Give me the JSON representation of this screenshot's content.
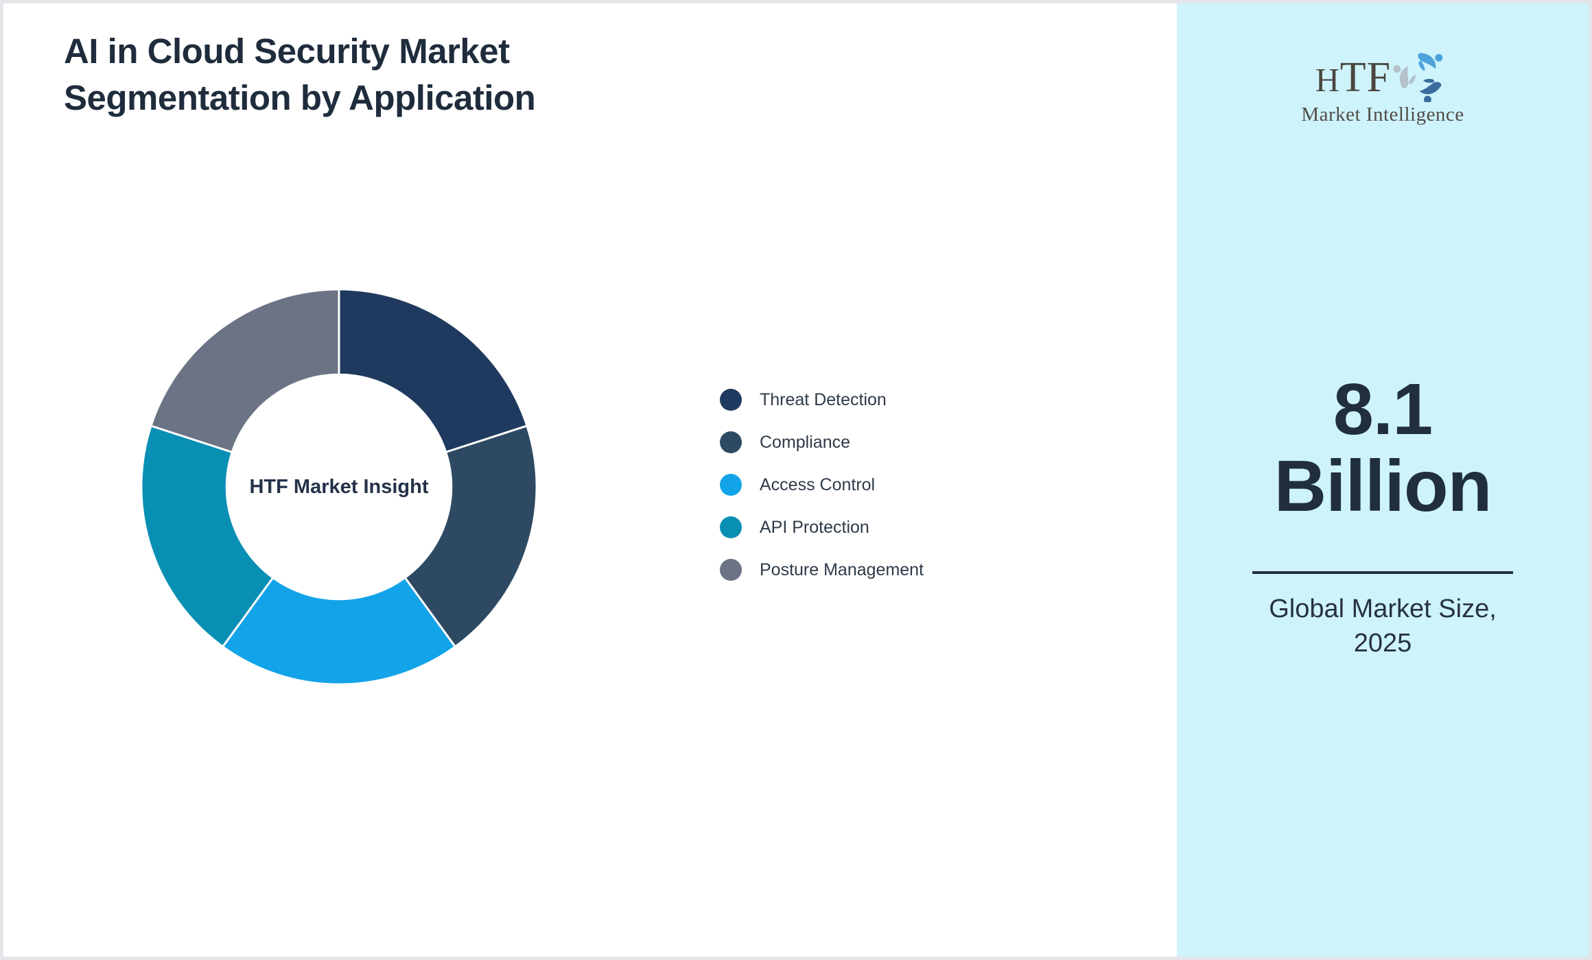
{
  "page": {
    "title_lines": [
      "AI in Cloud Security Market",
      "Segmentation by Application"
    ]
  },
  "sidebar": {
    "logo_brand": "HTF",
    "logo_tagline": "Market Intelligence",
    "value_line1": "8.1",
    "value_line2": "Billion",
    "caption_line1": "Global Market Size,",
    "caption_line2": "2025",
    "background_color": "#cef3fb"
  },
  "chart_data": {
    "type": "pie",
    "subtype": "donut",
    "title": "AI in Cloud Security Market Segmentation by Application",
    "categories": [
      "Threat Detection",
      "Compliance",
      "Access Control",
      "API Protection",
      "Posture Management"
    ],
    "values": [
      20,
      20,
      20,
      20,
      20
    ],
    "unit": "% share (five equal ~72° segments)",
    "colors": [
      "#1f3a5e",
      "#2e4a63",
      "#13a3e8",
      "#0a8fb4",
      "#6b7384"
    ],
    "start_angle_deg": 0,
    "direction": "clockwise",
    "inner_radius_ratio": 0.57,
    "center_label": "HTF Market Insight",
    "legend_position": "right-of-chart",
    "annotation": "8.1 Billion — Global Market Size, 2025"
  }
}
